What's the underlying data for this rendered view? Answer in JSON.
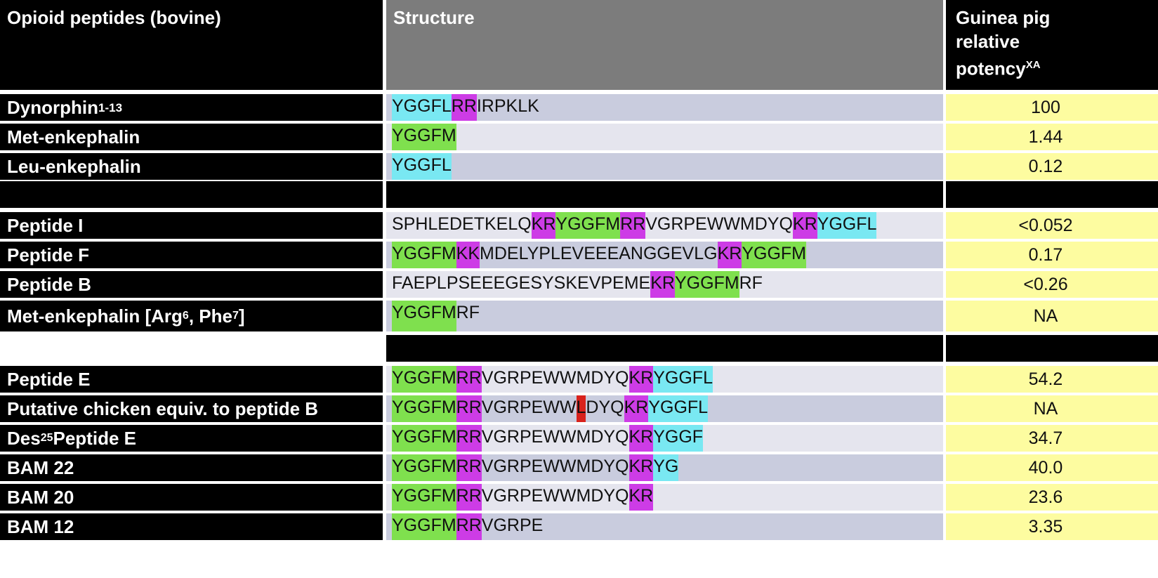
{
  "header": {
    "col1": "Opioid peptides (bovine)",
    "col2": "Structure",
    "col3_lines": [
      "Guinea pig",
      "relative",
      "potency"
    ],
    "col3_sup": "XA"
  },
  "colors": {
    "green_highlight": "#7fe04e",
    "cyan_highlight": "#79e8f2",
    "magenta_highlight": "#cd3ce6",
    "red_highlight": "#d8221c",
    "potency_bg": "#fdfca0"
  },
  "rows": [
    {
      "name": "Dynorphin",
      "name_sub": "1-13",
      "potency": "100",
      "segments": [
        {
          "t": "YGGFL",
          "h": "c"
        },
        {
          "t": "RR",
          "h": "m"
        },
        {
          "t": "IRPKLK",
          "h": ""
        }
      ]
    },
    {
      "name": "Met-enkephalin",
      "potency": "1.44",
      "segments": [
        {
          "t": "YGGFM",
          "h": "g"
        }
      ]
    },
    {
      "name": "Leu-enkephalin",
      "potency": "0.12",
      "segments": [
        {
          "t": "YGGFL",
          "h": "c"
        }
      ]
    },
    {
      "name": "Peptide I",
      "potency": "<0.052",
      "segments": [
        {
          "t": "SPHLEDETKELQ",
          "h": ""
        },
        {
          "t": "KR",
          "h": "m"
        },
        {
          "t": "YGGFM",
          "h": "g"
        },
        {
          "t": "RR",
          "h": "m"
        },
        {
          "t": "VGRPEWWMDYQ",
          "h": ""
        },
        {
          "t": "KR",
          "h": "m"
        },
        {
          "t": "YGGFL",
          "h": "c"
        }
      ]
    },
    {
      "name": "Peptide F",
      "potency": "0.17",
      "segments": [
        {
          "t": "YGGFM",
          "h": "g"
        },
        {
          "t": "KK",
          "h": "m"
        },
        {
          "t": "MDELYPLEVEEEANGGEVLG",
          "h": ""
        },
        {
          "t": "KR",
          "h": "m"
        },
        {
          "t": "YGGFM",
          "h": "g"
        }
      ]
    },
    {
      "name": "Peptide B",
      "potency": "<0.26",
      "segments": [
        {
          "t": "FAEPLPSEEEGESYSKEVPEME",
          "h": ""
        },
        {
          "t": "KR",
          "h": "m"
        },
        {
          "t": "YGGFM",
          "h": "g"
        },
        {
          "t": "RF",
          "h": ""
        }
      ]
    },
    {
      "name": "Met-enkephalin [Arg",
      "name_sup1": "6",
      "name_mid": ", Phe",
      "name_sup2": "7",
      "name_end": "]",
      "potency": "NA",
      "segments": [
        {
          "t": "YGGFM",
          "h": "g"
        },
        {
          "t": "RF",
          "h": ""
        }
      ]
    },
    {
      "name": "Peptide E",
      "potency": "54.2",
      "segments": [
        {
          "t": "YGGFM",
          "h": "g"
        },
        {
          "t": "RR",
          "h": "m"
        },
        {
          "t": "VGRPEWWMDYQ",
          "h": ""
        },
        {
          "t": "KR",
          "h": "m"
        },
        {
          "t": "YGGFL",
          "h": "c"
        }
      ]
    },
    {
      "name": "Putative chicken equiv. to peptide B",
      "potency": "NA",
      "segments": [
        {
          "t": "YGGFM",
          "h": "g"
        },
        {
          "t": "RR",
          "h": "m"
        },
        {
          "t": "VGRPEWW",
          "h": ""
        },
        {
          "t": "L",
          "h": "r"
        },
        {
          "t": "DYQ",
          "h": ""
        },
        {
          "t": "KR",
          "h": "m"
        },
        {
          "t": "YGGFL",
          "h": "c"
        }
      ]
    },
    {
      "name": "Des",
      "name_sup1": "25",
      "name_mid": " Peptide E",
      "potency": "34.7",
      "segments": [
        {
          "t": "YGGFM",
          "h": "g"
        },
        {
          "t": "RR",
          "h": "m"
        },
        {
          "t": "VGRPEWWMDYQ",
          "h": ""
        },
        {
          "t": "KR",
          "h": "m"
        },
        {
          "t": "YGGF",
          "h": "c"
        }
      ]
    },
    {
      "name": "BAM 22",
      "potency": "40.0",
      "segments": [
        {
          "t": "YGGFM",
          "h": "g"
        },
        {
          "t": "RR",
          "h": "m"
        },
        {
          "t": "VGRPEWWMDYQ",
          "h": ""
        },
        {
          "t": "KR",
          "h": "m"
        },
        {
          "t": "YG",
          "h": "c"
        }
      ]
    },
    {
      "name": "BAM 20",
      "potency": "23.6",
      "segments": [
        {
          "t": "YGGFM",
          "h": "g"
        },
        {
          "t": "RR",
          "h": "m"
        },
        {
          "t": "VGRPEWWMDYQ",
          "h": ""
        },
        {
          "t": "KR",
          "h": "m"
        }
      ]
    },
    {
      "name": "BAM 12",
      "potency": "3.35",
      "segments": [
        {
          "t": "YGGFM",
          "h": "g"
        },
        {
          "t": "RR",
          "h": "m"
        },
        {
          "t": "VGRPE",
          "h": ""
        }
      ]
    }
  ]
}
